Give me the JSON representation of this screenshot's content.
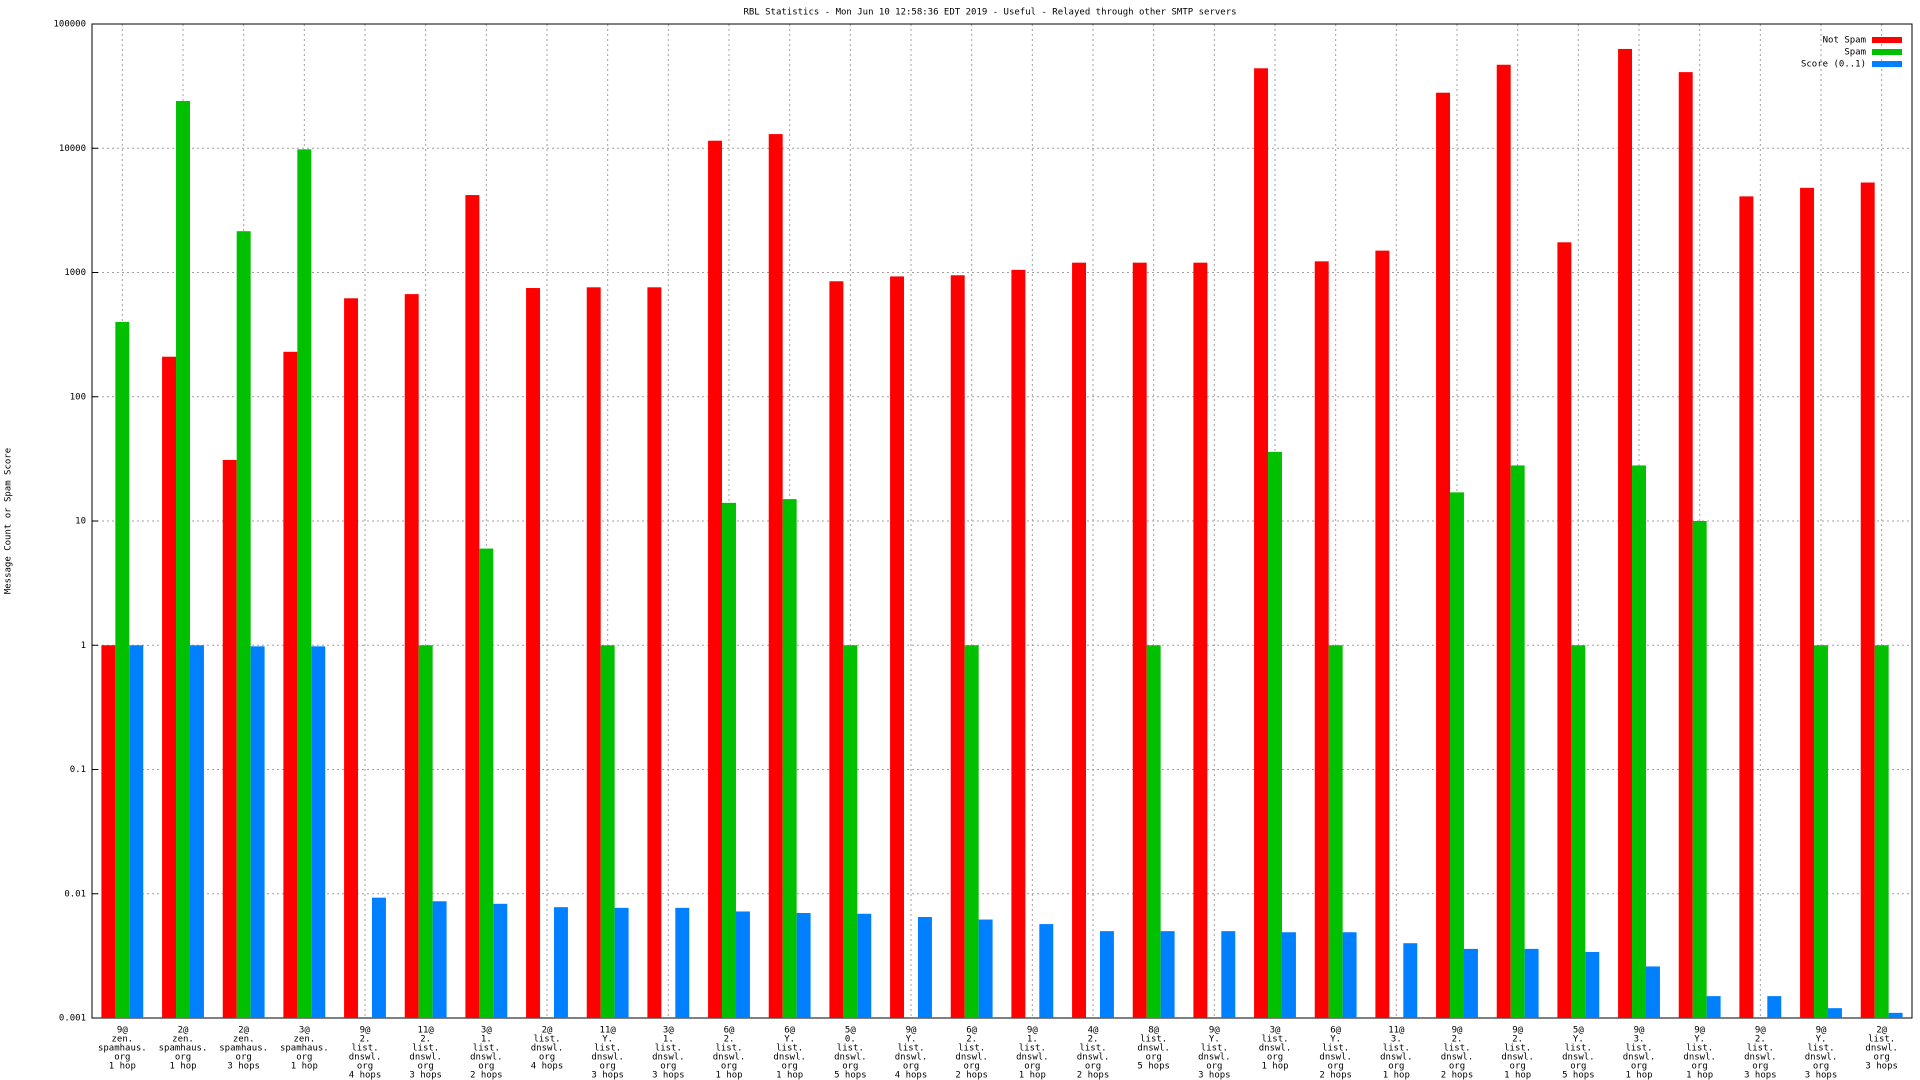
{
  "chart_data": {
    "type": "bar",
    "title": "RBL Statistics - Mon Jun 10 12:58:36 EDT 2019 - Useful - Relayed through other SMTP servers",
    "y_label": "Message Count or Spam Score",
    "log_scale": true,
    "grid": true,
    "legend_position": "top-right",
    "ylim": [
      0.001,
      100000
    ],
    "yticks": [
      0.001,
      0.01,
      0.1,
      1,
      10,
      100,
      1000,
      10000,
      100000
    ],
    "categories": [
      [
        "9@",
        "zen.",
        "spamhaus.",
        "org",
        "1 hop"
      ],
      [
        "2@",
        "zen.",
        "spamhaus.",
        "org",
        "1 hop"
      ],
      [
        "2@",
        "zen.",
        "spamhaus.",
        "org",
        "3 hops"
      ],
      [
        "3@",
        "zen.",
        "spamhaus.",
        "org",
        "1 hop"
      ],
      [
        "9@",
        "2.",
        "list.",
        "dnswl.",
        "org",
        "4 hops"
      ],
      [
        "11@",
        "2.",
        "list.",
        "dnswl.",
        "org",
        "3 hops"
      ],
      [
        "3@",
        "1.",
        "list.",
        "dnswl.",
        "org",
        "2 hops"
      ],
      [
        "2@",
        "list.",
        "dnswl.",
        "org",
        "4 hops"
      ],
      [
        "11@",
        "Y.",
        "list.",
        "dnswl.",
        "org",
        "3 hops"
      ],
      [
        "3@",
        "1.",
        "list.",
        "dnswl.",
        "org",
        "3 hops"
      ],
      [
        "6@",
        "2.",
        "list.",
        "dnswl.",
        "org",
        "1 hop"
      ],
      [
        "6@",
        "Y.",
        "list.",
        "dnswl.",
        "org",
        "1 hop"
      ],
      [
        "5@",
        "0.",
        "list.",
        "dnswl.",
        "org",
        "5 hops"
      ],
      [
        "9@",
        "Y.",
        "list.",
        "dnswl.",
        "org",
        "4 hops"
      ],
      [
        "6@",
        "2.",
        "list.",
        "dnswl.",
        "org",
        "2 hops"
      ],
      [
        "9@",
        "1.",
        "list.",
        "dnswl.",
        "org",
        "1 hop"
      ],
      [
        "4@",
        "2.",
        "list.",
        "dnswl.",
        "org",
        "2 hops"
      ],
      [
        "8@",
        "list.",
        "dnswl.",
        "org",
        "5 hops"
      ],
      [
        "9@",
        "Y.",
        "list.",
        "dnswl.",
        "org",
        "3 hops"
      ],
      [
        "3@",
        "list.",
        "dnswl.",
        "org",
        "1 hop"
      ],
      [
        "6@",
        "Y.",
        "list.",
        "dnswl.",
        "org",
        "2 hops"
      ],
      [
        "11@",
        "3.",
        "list.",
        "dnswl.",
        "org",
        "1 hop"
      ],
      [
        "9@",
        "2.",
        "list.",
        "dnswl.",
        "org",
        "2 hops"
      ],
      [
        "9@",
        "2.",
        "list.",
        "dnswl.",
        "org",
        "1 hop"
      ],
      [
        "5@",
        "Y.",
        "list.",
        "dnswl.",
        "org",
        "5 hops"
      ],
      [
        "9@",
        "3.",
        "list.",
        "dnswl.",
        "org",
        "1 hop"
      ],
      [
        "9@",
        "Y.",
        "list.",
        "dnswl.",
        "org",
        "1 hop"
      ],
      [
        "9@",
        "2.",
        "list.",
        "dnswl.",
        "org",
        "3 hops"
      ],
      [
        "9@",
        "Y.",
        "list.",
        "dnswl.",
        "org",
        "3 hops"
      ],
      [
        "2@",
        "list.",
        "dnswl.",
        "org",
        "3 hops"
      ]
    ],
    "series": [
      {
        "name": "Not Spam",
        "color": "#ff0000",
        "values": [
          1,
          210,
          31,
          230,
          620,
          670,
          4200,
          750,
          760,
          760,
          11500,
          13000,
          850,
          930,
          950,
          1050,
          1200,
          1200,
          1200,
          44000,
          1230,
          1500,
          28000,
          47000,
          1750,
          63000,
          41000,
          4100,
          4800,
          5300
        ]
      },
      {
        "name": "Spam",
        "color": "#00c000",
        "values": [
          400,
          24000,
          2150,
          9800,
          null,
          1,
          6,
          null,
          1,
          null,
          14,
          15,
          1,
          null,
          1,
          null,
          null,
          1,
          null,
          36,
          1,
          null,
          17,
          28,
          1,
          28,
          10,
          null,
          1,
          1
        ]
      },
      {
        "name": "Score (0..1)",
        "color": "#0080ff",
        "values": [
          1,
          1,
          0.98,
          0.98,
          0.0093,
          0.0087,
          0.0083,
          0.0078,
          0.0077,
          0.0077,
          0.0072,
          0.007,
          0.0069,
          0.0065,
          0.0062,
          0.0057,
          0.005,
          0.005,
          0.005,
          0.0049,
          0.0049,
          0.004,
          0.0036,
          0.0036,
          0.0034,
          0.0026,
          0.0015,
          0.0015,
          0.0012,
          0.0011
        ]
      }
    ]
  }
}
